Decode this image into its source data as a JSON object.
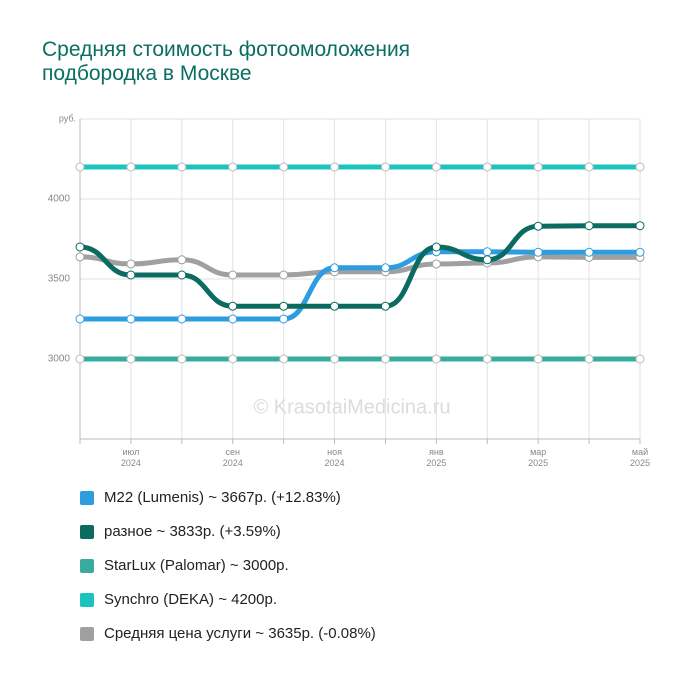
{
  "chart_data": {
    "type": "line",
    "title": "Средняя стоимость фотоомоложения подбородка в Москве",
    "y_unit": "руб.",
    "watermark": "© KrasotaiMedicina.ru",
    "categories": [
      null,
      "июл 2024",
      null,
      "сен 2024",
      null,
      "ноя 2024",
      null,
      "янв 2025",
      null,
      "мар 2025",
      null,
      "май 2025"
    ],
    "ylim": [
      2500,
      4500
    ],
    "yticks": [
      3000,
      3500,
      4000
    ],
    "grid": true,
    "series": [
      {
        "name": "StarLux (Palomar) ~ 3000р.",
        "color": "#38ab9e",
        "values": [
          3000,
          3000,
          3000,
          3000,
          3000,
          3000,
          3000,
          3000,
          3000,
          3000,
          3000,
          3000
        ]
      },
      {
        "name": "Synchro (DEKA) ~ 4200р.",
        "color": "#1bc4bf",
        "values": [
          4200,
          4200,
          4200,
          4200,
          4200,
          4200,
          4200,
          4200,
          4200,
          4200,
          4200,
          4200
        ]
      },
      {
        "name": "Средняя цена услуги ~ 3635р. (-0.08%)",
        "color": "#a0a0a0",
        "values": [
          3638,
          3594,
          3620,
          3525,
          3525,
          3545,
          3545,
          3594,
          3600,
          3638,
          3635,
          3635
        ]
      },
      {
        "name": "M22 (Lumenis) ~ 3667р. (+12.83%)",
        "color": "#2e9ce0",
        "values": [
          3250,
          3250,
          3250,
          3250,
          3250,
          3570,
          3570,
          3670,
          3670,
          3667,
          3667,
          3667
        ]
      },
      {
        "name": "разное ~ 3833р. (+3.59%)",
        "color": "#0b6b60",
        "values": [
          3700,
          3525,
          3525,
          3330,
          3330,
          3330,
          3330,
          3700,
          3620,
          3830,
          3833,
          3833
        ]
      }
    ],
    "legend_order": [
      3,
      4,
      0,
      1,
      2
    ]
  }
}
